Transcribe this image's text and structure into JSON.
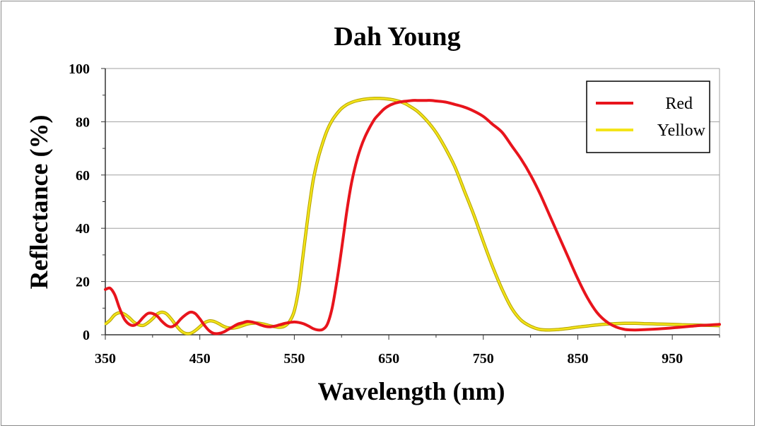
{
  "chart_data": {
    "type": "line",
    "title": "Dah Young",
    "xlabel": "Wavelength (nm)",
    "ylabel": "Reflectance  (%)",
    "xlim": [
      350,
      1000
    ],
    "ylim": [
      0,
      100
    ],
    "xticks": [
      350,
      450,
      550,
      650,
      750,
      850,
      950
    ],
    "yticks": [
      0,
      20,
      40,
      60,
      80,
      100
    ],
    "grid": "horizontal",
    "legend_position": "top-right",
    "series": [
      {
        "name": "Red",
        "color": "#e8141c",
        "x": [
          350,
          355,
          360,
          365,
          370,
          375,
          380,
          385,
          390,
          395,
          400,
          405,
          410,
          415,
          420,
          425,
          430,
          435,
          440,
          445,
          450,
          455,
          460,
          465,
          470,
          475,
          480,
          485,
          490,
          495,
          500,
          505,
          510,
          515,
          520,
          525,
          530,
          535,
          540,
          545,
          550,
          555,
          560,
          565,
          570,
          575,
          580,
          585,
          590,
          595,
          600,
          605,
          610,
          615,
          620,
          625,
          630,
          635,
          640,
          645,
          650,
          655,
          660,
          665,
          670,
          675,
          680,
          685,
          690,
          695,
          700,
          710,
          720,
          730,
          740,
          750,
          760,
          770,
          780,
          790,
          800,
          810,
          820,
          830,
          840,
          850,
          860,
          870,
          880,
          890,
          900,
          910,
          920,
          930,
          940,
          950,
          960,
          970,
          980,
          990,
          1000
        ],
        "y": [
          17,
          17.5,
          15,
          10,
          6,
          4,
          3.5,
          4.5,
          6.5,
          8,
          8,
          7,
          5,
          3.5,
          3,
          4,
          6,
          7.5,
          8.5,
          8,
          6,
          3.5,
          1.5,
          0.5,
          0.5,
          1,
          2,
          3,
          4,
          4.5,
          5,
          4.8,
          4.3,
          3.6,
          3.1,
          3,
          3.3,
          3.8,
          4.3,
          4.6,
          4.8,
          4.6,
          4.1,
          3.3,
          2.3,
          1.8,
          2,
          4,
          10,
          20,
          32,
          45,
          56,
          64,
          70,
          74.5,
          78,
          81,
          83,
          84.8,
          86,
          86.8,
          87.3,
          87.6,
          87.8,
          88,
          88,
          88,
          88,
          88,
          87.8,
          87.4,
          86.5,
          85.5,
          84,
          82,
          79,
          76,
          71,
          66,
          60,
          53,
          45,
          37,
          29,
          21,
          14,
          8.5,
          5,
          3,
          2,
          1.8,
          1.9,
          2.1,
          2.3,
          2.6,
          2.9,
          3.2,
          3.5,
          3.7,
          3.9
        ]
      },
      {
        "name": "Yellow",
        "color": "#f4e419",
        "x": [
          350,
          355,
          360,
          365,
          370,
          375,
          380,
          385,
          390,
          395,
          400,
          405,
          410,
          415,
          420,
          425,
          430,
          435,
          440,
          445,
          450,
          455,
          460,
          465,
          470,
          475,
          480,
          485,
          490,
          495,
          500,
          505,
          510,
          515,
          520,
          525,
          530,
          535,
          540,
          545,
          550,
          555,
          560,
          565,
          570,
          575,
          580,
          585,
          590,
          595,
          600,
          605,
          610,
          615,
          620,
          625,
          630,
          635,
          640,
          645,
          650,
          655,
          660,
          665,
          670,
          680,
          690,
          700,
          710,
          720,
          730,
          740,
          750,
          760,
          770,
          780,
          790,
          800,
          810,
          820,
          830,
          840,
          850,
          860,
          870,
          880,
          890,
          900,
          910,
          920,
          930,
          940,
          950,
          960,
          970,
          980,
          990,
          1000
        ],
        "y": [
          4,
          5.5,
          7.5,
          8.3,
          7.8,
          6.5,
          4.8,
          3.8,
          3.5,
          4.5,
          6,
          7.8,
          8.5,
          7.8,
          5.8,
          3.5,
          1.5,
          0.5,
          0.5,
          1.5,
          3,
          4.5,
          5.2,
          5,
          4.2,
          3.2,
          2.6,
          2.5,
          2.8,
          3.4,
          4,
          4.3,
          4.4,
          4.2,
          3.8,
          3.3,
          3,
          2.8,
          3.3,
          5,
          9,
          18,
          32,
          46,
          58,
          66,
          72,
          77,
          80.5,
          83,
          85,
          86.3,
          87.2,
          87.8,
          88.2,
          88.5,
          88.7,
          88.8,
          88.8,
          88.7,
          88.5,
          88.2,
          87.8,
          87.2,
          86.3,
          84,
          80.5,
          76,
          70,
          63,
          54,
          45,
          35,
          25.5,
          17,
          10,
          5.5,
          3.2,
          2,
          1.8,
          2,
          2.4,
          2.9,
          3.3,
          3.7,
          4,
          4.2,
          4.3,
          4.3,
          4.2,
          4.1,
          4,
          3.9,
          3.8,
          3.7,
          3.6,
          3.5,
          3.4
        ]
      }
    ]
  }
}
